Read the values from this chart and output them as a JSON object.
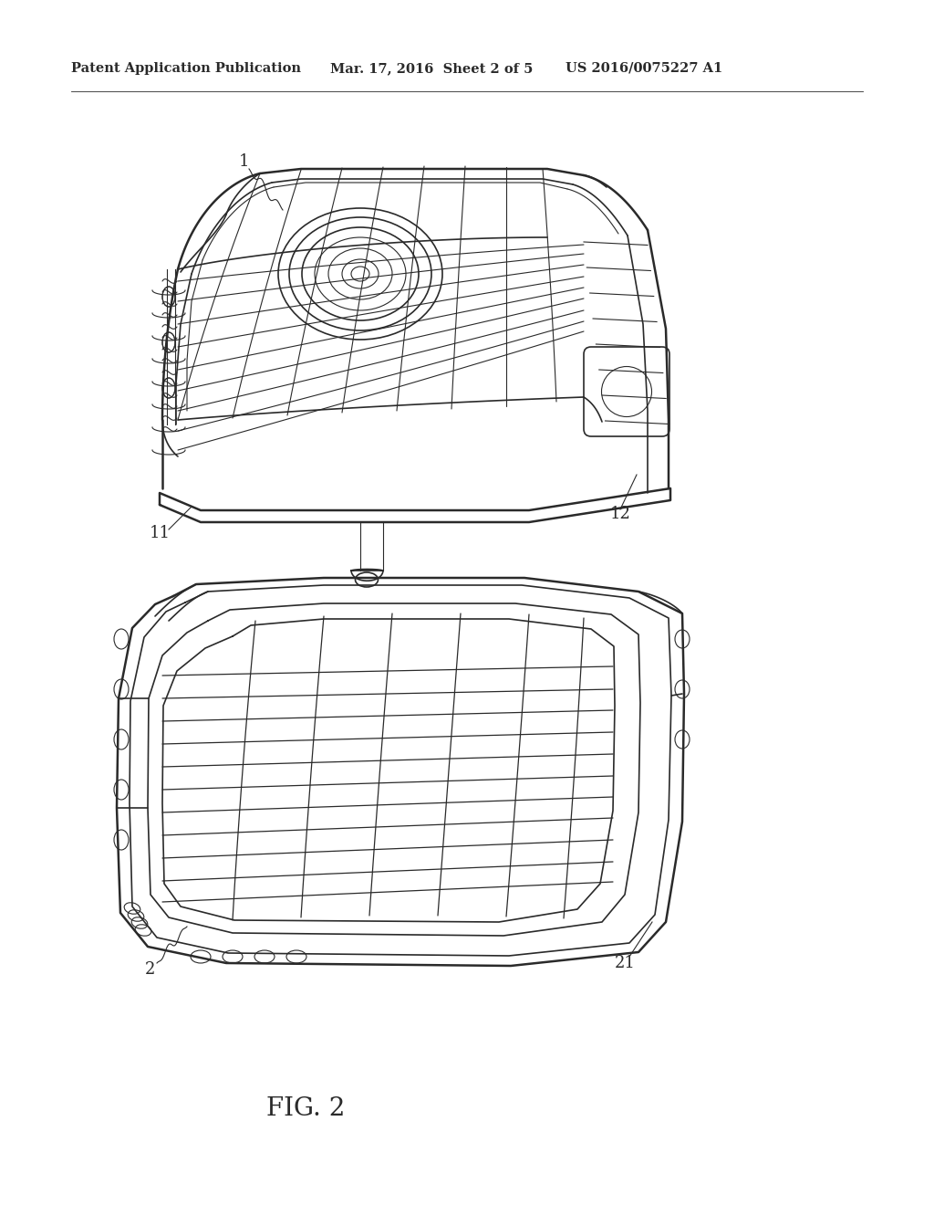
{
  "bg_color": "#ffffff",
  "line_color": "#2a2a2a",
  "lw_thick": 1.8,
  "lw_med": 1.2,
  "lw_thin": 0.8,
  "header_left": "Patent Application Publication",
  "header_mid": "Mar. 17, 2016  Sheet 2 of 5",
  "header_right": "US 2016/0075227 A1",
  "header_fontsize": 10.5,
  "caption": "FIG. 2",
  "caption_fontsize": 20,
  "label_fontsize": 13,
  "fig_width": 10.24,
  "fig_height": 13.2,
  "dpi": 100
}
